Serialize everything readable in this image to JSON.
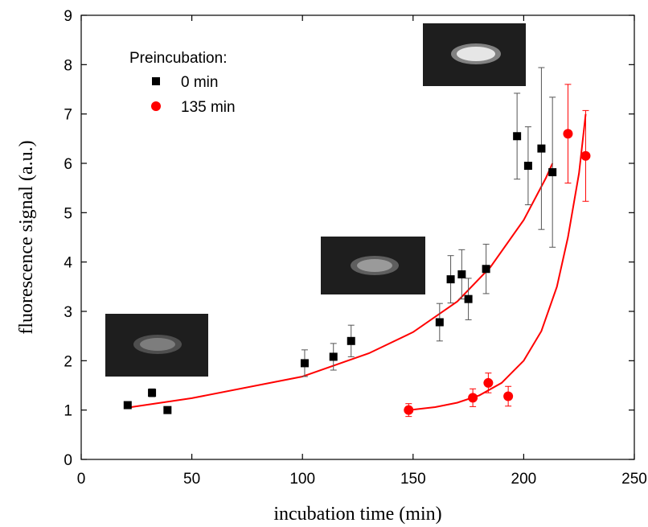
{
  "chart_data": {
    "type": "scatter",
    "xlabel": "incubation time (min)",
    "ylabel": "fluorescence signal (a.u.)",
    "xlim": [
      0,
      250
    ],
    "ylim": [
      0,
      9
    ],
    "x_ticks": [
      0,
      50,
      100,
      150,
      200,
      250
    ],
    "y_ticks": [
      0,
      1,
      2,
      3,
      4,
      5,
      6,
      7,
      8,
      9
    ],
    "grid": false,
    "legend": {
      "title": "Preincubation:",
      "position": "top-left",
      "entries": [
        {
          "label": "0 min",
          "marker": "square",
          "color": "#000000"
        },
        {
          "label": "135 min",
          "marker": "circle",
          "color": "#ff0000"
        }
      ]
    },
    "series": [
      {
        "name": "0 min",
        "marker": "square",
        "color": "#000000",
        "points": [
          {
            "x": 21,
            "y": 1.1,
            "err": 0
          },
          {
            "x": 32,
            "y": 1.35,
            "err": 0.08
          },
          {
            "x": 39,
            "y": 1.0,
            "err": 0
          },
          {
            "x": 101,
            "y": 1.95,
            "err": 0.27
          },
          {
            "x": 114,
            "y": 2.08,
            "err": 0.27
          },
          {
            "x": 122,
            "y": 2.4,
            "err": 0.32
          },
          {
            "x": 162,
            "y": 2.78,
            "err": 0.38
          },
          {
            "x": 167,
            "y": 3.65,
            "err": 0.48
          },
          {
            "x": 172,
            "y": 3.75,
            "err": 0.5
          },
          {
            "x": 175,
            "y": 3.25,
            "err": 0.42
          },
          {
            "x": 183,
            "y": 3.86,
            "err": 0.5
          },
          {
            "x": 197,
            "y": 6.55,
            "err": 0.87
          },
          {
            "x": 202,
            "y": 5.95,
            "err": 0.79
          },
          {
            "x": 208,
            "y": 6.3,
            "err": 1.64
          },
          {
            "x": 213,
            "y": 5.82,
            "err": 1.52
          }
        ],
        "fit": {
          "color": "#ff0000",
          "points": [
            [
              21,
              1.05
            ],
            [
              50,
              1.24
            ],
            [
              100,
              1.68
            ],
            [
              130,
              2.15
            ],
            [
              150,
              2.58
            ],
            [
              170,
              3.2
            ],
            [
              185,
              3.9
            ],
            [
              200,
              4.85
            ],
            [
              210,
              5.7
            ],
            [
              213,
              6.0
            ]
          ]
        }
      },
      {
        "name": "135 min",
        "marker": "circle",
        "color": "#ff0000",
        "points": [
          {
            "x": 148,
            "y": 1.0,
            "err": 0.13
          },
          {
            "x": 177,
            "y": 1.25,
            "err": 0.18
          },
          {
            "x": 184,
            "y": 1.55,
            "err": 0.2
          },
          {
            "x": 193,
            "y": 1.28,
            "err": 0.2
          },
          {
            "x": 220,
            "y": 6.6,
            "err": 1.0
          },
          {
            "x": 228,
            "y": 6.15,
            "err": 0.92
          }
        ],
        "fit": {
          "color": "#ff0000",
          "points": [
            [
              148,
              1.0
            ],
            [
              160,
              1.06
            ],
            [
              170,
              1.15
            ],
            [
              180,
              1.3
            ],
            [
              190,
              1.55
            ],
            [
              200,
              2.0
            ],
            [
              208,
              2.6
            ],
            [
              215,
              3.5
            ],
            [
              220,
              4.5
            ],
            [
              225,
              5.8
            ],
            [
              228,
              7.0
            ]
          ]
        }
      }
    ]
  }
}
